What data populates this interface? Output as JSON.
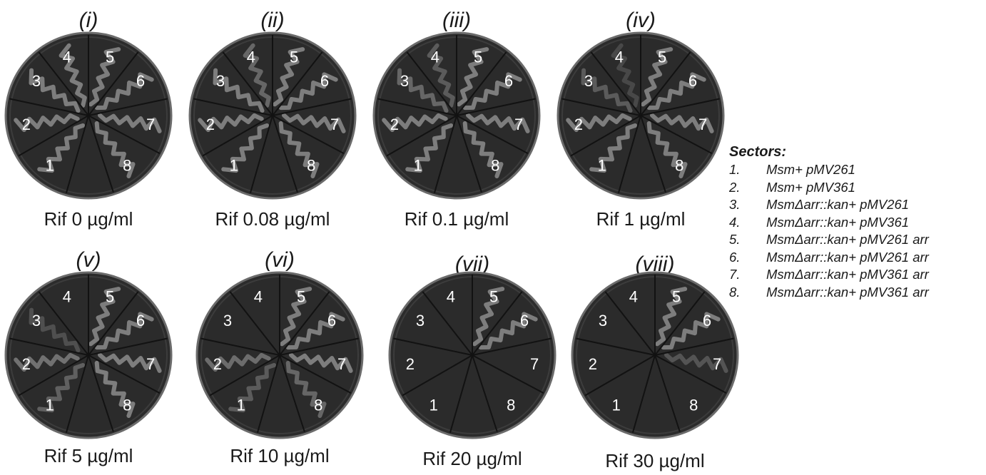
{
  "plates": [
    {
      "roman": "(i)",
      "caption": "Rif 0 µg/ml",
      "growth": [
        1,
        1,
        1,
        1,
        1,
        1,
        1,
        1
      ]
    },
    {
      "roman": "(ii)",
      "caption": "Rif 0.08 µg/ml",
      "growth": [
        1,
        1,
        1,
        0.6,
        1,
        1,
        1,
        1
      ]
    },
    {
      "roman": "(iii)",
      "caption": "Rif 0.1 µg/ml",
      "growth": [
        1,
        1,
        0.6,
        0.4,
        1,
        1,
        1,
        1
      ]
    },
    {
      "roman": "(iv)",
      "caption": "Rif 1 µg/ml",
      "growth": [
        1,
        1,
        0.4,
        0.1,
        1,
        1,
        1,
        1
      ]
    },
    {
      "roman": "(v)",
      "caption": "Rif 5 µg/ml",
      "growth": [
        0.5,
        0.8,
        0.2,
        0,
        1,
        1,
        1,
        1
      ]
    },
    {
      "roman": "(vi)",
      "caption": "Rif 10 µg/ml",
      "growth": [
        0.4,
        0.7,
        0,
        0,
        1,
        1,
        1,
        0.6
      ]
    },
    {
      "roman": "(vii)",
      "caption": "Rif 20 µg/ml",
      "growth": [
        0,
        0,
        0,
        0,
        1,
        1,
        0,
        0
      ]
    },
    {
      "roman": "(viii)",
      "caption": "Rif 30 µg/ml",
      "growth": [
        0,
        0,
        0,
        0,
        1,
        1,
        0.3,
        0
      ]
    }
  ],
  "sector_numbers": [
    "1",
    "2",
    "3",
    "4",
    "5",
    "6",
    "7",
    "8"
  ],
  "legend": {
    "title": "Sectors:",
    "items": [
      {
        "num": "1.",
        "text": "Msm+ pMV261"
      },
      {
        "num": "2.",
        "text": "Msm+ pMV361"
      },
      {
        "num": "3.",
        "text": "MsmΔarr::kan+ pMV261"
      },
      {
        "num": "4.",
        "text": "MsmΔarr::kan+ pMV361"
      },
      {
        "num": "5.",
        "text": "MsmΔarr::kan+ pMV261 arr"
      },
      {
        "num": "6.",
        "text": "MsmΔarr::kan+ pMV261 arr"
      },
      {
        "num": "7.",
        "text": "MsmΔarr::kan+ pMV361 arr"
      },
      {
        "num": "8.",
        "text": "MsmΔarr::kan+ pMV361 arr"
      }
    ]
  },
  "colors": {
    "plate": "#2b2b2b",
    "rim": "#6b6b6b",
    "growth": "#8c8c8c",
    "text": "#1a1a1a",
    "plate_number": "#ffffff"
  }
}
